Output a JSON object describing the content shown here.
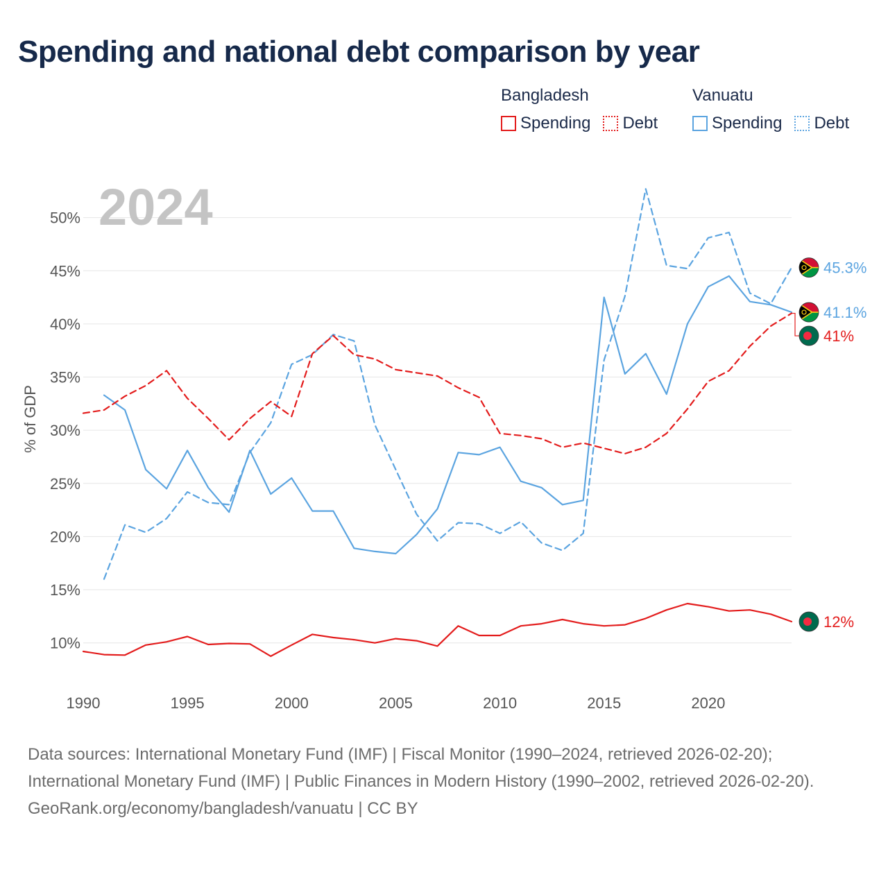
{
  "title": "Spending and national debt comparison by year",
  "legend": {
    "groups": [
      {
        "country": "Bangladesh",
        "items": [
          "Spending",
          "Debt"
        ],
        "color": "#e31c1c"
      },
      {
        "country": "Vanuatu",
        "items": [
          "Spending",
          "Debt"
        ],
        "color": "#5ba4e0"
      }
    ]
  },
  "footer": {
    "sources": "Data sources: International Monetary Fund (IMF) | Fiscal Monitor (1990–2024, retrieved 2026-02-20); International Monetary Fund (IMF) | Public Finances in Modern History (1990–2002, retrieved 2026-02-20).",
    "credit": "GeoRank.org/economy/bangladesh/vanuatu | CC BY"
  },
  "chart_data": {
    "type": "line",
    "title": "Spending and national debt comparison by year",
    "year_label": "2024",
    "xlabel": "",
    "ylabel": "% of GDP",
    "xlim": [
      1990,
      2024
    ],
    "ylim": [
      6,
      55
    ],
    "x_ticks": [
      1990,
      1995,
      2000,
      2005,
      2010,
      2015,
      2020
    ],
    "y_ticks": [
      10,
      15,
      20,
      25,
      30,
      35,
      40,
      45,
      50
    ],
    "y_tick_labels": [
      "10%",
      "15%",
      "20%",
      "25%",
      "30%",
      "35%",
      "40%",
      "45%",
      "50%"
    ],
    "grid": true,
    "series": [
      {
        "name": "Bangladesh Spending",
        "color": "#e31c1c",
        "dash": "solid",
        "x": [
          1990,
          1991,
          1992,
          1993,
          1994,
          1995,
          1996,
          1997,
          1998,
          1999,
          2000,
          2001,
          2002,
          2003,
          2004,
          2005,
          2006,
          2007,
          2008,
          2009,
          2010,
          2011,
          2012,
          2013,
          2014,
          2015,
          2016,
          2017,
          2018,
          2019,
          2020,
          2021,
          2022,
          2023,
          2024
        ],
        "values": [
          9.2,
          8.9,
          8.85,
          9.8,
          10.1,
          10.6,
          9.85,
          9.95,
          9.9,
          8.75,
          9.8,
          10.8,
          10.5,
          10.3,
          10.0,
          10.4,
          10.2,
          9.7,
          11.6,
          10.7,
          10.7,
          11.6,
          11.8,
          12.2,
          11.8,
          11.6,
          11.7,
          12.3,
          13.1,
          13.7,
          13.4,
          13.0,
          13.1,
          12.7,
          12.0
        ],
        "end_label": "12%"
      },
      {
        "name": "Bangladesh Debt",
        "color": "#e31c1c",
        "dash": "dashed",
        "x": [
          1990,
          1991,
          1992,
          1993,
          1994,
          1995,
          1996,
          1997,
          1998,
          1999,
          2000,
          2001,
          2002,
          2003,
          2004,
          2005,
          2006,
          2007,
          2008,
          2009,
          2010,
          2011,
          2012,
          2013,
          2014,
          2015,
          2016,
          2017,
          2018,
          2019,
          2020,
          2021,
          2022,
          2023,
          2024
        ],
        "values": [
          31.6,
          31.9,
          33.2,
          34.2,
          35.6,
          33.0,
          31.1,
          29.1,
          31.1,
          32.7,
          31.3,
          37.2,
          38.9,
          37.1,
          36.7,
          35.7,
          35.4,
          35.1,
          34.0,
          33.1,
          29.7,
          29.5,
          29.2,
          28.4,
          28.8,
          28.3,
          27.8,
          28.4,
          29.7,
          32.0,
          34.6,
          35.6,
          37.9,
          39.8,
          41.0
        ],
        "end_label": "41%"
      },
      {
        "name": "Vanuatu Spending",
        "color": "#5ba4e0",
        "dash": "solid",
        "x": [
          1991,
          1992,
          1993,
          1994,
          1995,
          1996,
          1997,
          1998,
          1999,
          2000,
          2001,
          2002,
          2003,
          2004,
          2005,
          2006,
          2007,
          2008,
          2009,
          2010,
          2011,
          2012,
          2013,
          2014,
          2015,
          2016,
          2017,
          2018,
          2019,
          2020,
          2021,
          2022,
          2023,
          2024
        ],
        "values": [
          33.3,
          31.9,
          26.3,
          24.5,
          28.1,
          24.6,
          22.3,
          28.1,
          24.0,
          25.5,
          22.4,
          22.4,
          18.9,
          18.6,
          18.4,
          20.2,
          22.6,
          27.9,
          27.7,
          28.4,
          25.2,
          24.6,
          23.0,
          23.4,
          42.5,
          35.3,
          37.2,
          33.4,
          40.0,
          43.5,
          44.5,
          42.1,
          41.8,
          41.1
        ],
        "end_label": "41.1%"
      },
      {
        "name": "Vanuatu Debt",
        "color": "#5ba4e0",
        "dash": "dashed",
        "x": [
          1991,
          1992,
          1993,
          1994,
          1995,
          1996,
          1997,
          1998,
          1999,
          2000,
          2001,
          2002,
          2003,
          2004,
          2005,
          2006,
          2007,
          2008,
          2009,
          2010,
          2011,
          2012,
          2013,
          2014,
          2015,
          2016,
          2017,
          2018,
          2019,
          2020,
          2021,
          2022,
          2023,
          2024
        ],
        "values": [
          16.0,
          21.1,
          20.4,
          21.7,
          24.2,
          23.2,
          23.0,
          27.9,
          30.7,
          36.2,
          37.1,
          39.0,
          38.4,
          30.5,
          26.3,
          22.1,
          19.6,
          21.3,
          21.2,
          20.3,
          21.4,
          19.4,
          18.7,
          20.3,
          36.6,
          42.6,
          52.7,
          45.5,
          45.2,
          48.1,
          48.6,
          42.9,
          41.9,
          45.3
        ],
        "end_label": "45.3%"
      }
    ],
    "end_markers": [
      {
        "series": "Vanuatu Debt",
        "flag": "vanuatu-flag-icon"
      },
      {
        "series": "Vanuatu Spending",
        "flag": "vanuatu-flag-icon"
      },
      {
        "series": "Bangladesh Debt",
        "flag": "bangladesh-flag-icon"
      },
      {
        "series": "Bangladesh Spending",
        "flag": "bangladesh-flag-icon"
      }
    ]
  }
}
